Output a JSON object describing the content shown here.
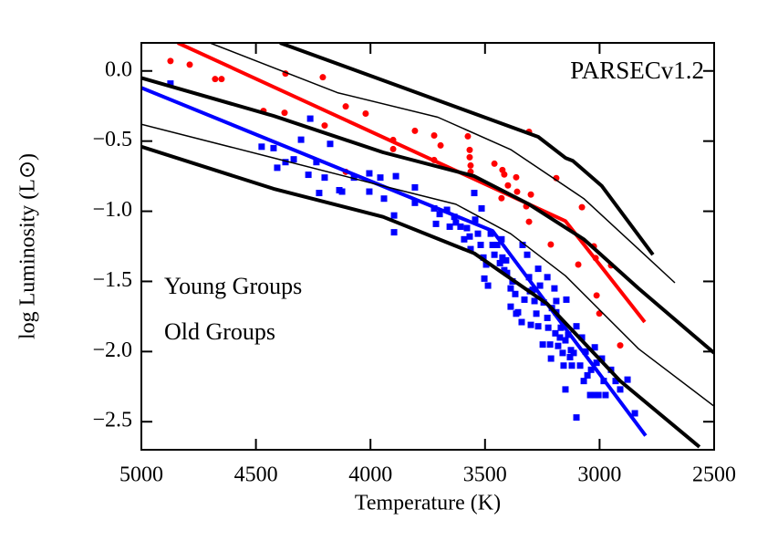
{
  "chart_data": {
    "type": "scatter",
    "annotation": "PARSECv1.2",
    "xlabel": "Temperature (K)",
    "ylabel": "log Luminosity (L⊙)",
    "xlim": [
      5000,
      2500
    ],
    "ylim": [
      -2.7,
      0.2
    ],
    "xticks": [
      5000,
      4500,
      4000,
      3500,
      3000,
      2500
    ],
    "yticks": [
      {
        "value": 0,
        "label": "0.0"
      },
      {
        "value": -0.5,
        "label": "−0.5"
      },
      {
        "value": -1,
        "label": "−1.0"
      },
      {
        "value": -1.5,
        "label": "−1.5"
      },
      {
        "value": -2,
        "label": "−2.0"
      },
      {
        "value": -2.5,
        "label": "−2.5"
      }
    ],
    "series": [
      {
        "name": "Young Groups",
        "color": "#ff0000",
        "kind": "scatter",
        "marker": "circle",
        "x": [
          4873,
          4789,
          4678,
          4650,
          4371,
          4208,
          4467,
          4375,
          4200,
          4108,
          4108,
          4021,
          3901,
          3901,
          3806,
          3722,
          3694,
          3722,
          3575,
          3567,
          3567,
          3563,
          3563,
          3459,
          3424,
          3416,
          3428,
          3400,
          3364,
          3360,
          3308,
          3300,
          3320,
          3308,
          3213,
          3189,
          3077,
          3093,
          3025,
          3017,
          3013,
          3001,
          2950,
          2910
        ],
        "values": [
          0.071,
          0.045,
          -0.058,
          -0.058,
          -0.019,
          -0.045,
          -0.285,
          -0.298,
          -0.389,
          -0.253,
          -0.719,
          -0.304,
          -0.492,
          -0.557,
          -0.427,
          -0.46,
          -0.531,
          -0.635,
          -0.466,
          -0.563,
          -0.615,
          -0.674,
          -0.719,
          -0.661,
          -0.706,
          -0.738,
          -0.907,
          -0.816,
          -0.758,
          -0.861,
          -0.434,
          -0.881,
          -0.965,
          -1.075,
          -1.237,
          -0.764,
          -0.971,
          -1.38,
          -1.25,
          -1.334,
          -1.6,
          -1.729,
          -1.386,
          -1.956
        ]
      },
      {
        "name": "Old Groups",
        "color": "#0000ff",
        "kind": "scatter",
        "marker": "square",
        "x": [
          4873,
          4475,
          4423,
          4407,
          4371,
          4335,
          4303,
          4263,
          4271,
          4236,
          4224,
          4200,
          4176,
          4136,
          4124,
          4072,
          4005,
          4005,
          3957,
          3941,
          3897,
          3897,
          3889,
          3806,
          3806,
          3722,
          3714,
          3698,
          3666,
          3654,
          3634,
          3627,
          3607,
          3591,
          3579,
          3567,
          3563,
          3547,
          3543,
          3531,
          3515,
          3519,
          3507,
          3495,
          3503,
          3487,
          3475,
          3467,
          3459,
          3447,
          3435,
          3428,
          3424,
          3416,
          3408,
          3404,
          3388,
          3380,
          3368,
          3388,
          3356,
          3364,
          3340,
          3328,
          3336,
          3316,
          3308,
          3304,
          3292,
          3284,
          3276,
          3268,
          3260,
          3248,
          3244,
          3228,
          3224,
          3216,
          3208,
          3212,
          3197,
          3193,
          3189,
          3181,
          3173,
          3169,
          3161,
          3157,
          3149,
          3145,
          3137,
          3129,
          3125,
          3121,
          3113,
          3101,
          3101,
          3085,
          3077,
          3069,
          3061,
          3053,
          3041,
          3037,
          3021,
          3021,
          3013,
          3005,
          2990,
          2982,
          2974,
          2950,
          2930,
          2910,
          2878,
          2846,
          3149,
          3189,
          3228,
          3268,
          3300
        ],
        "values": [
          -0.09,
          -0.54,
          -0.55,
          -0.69,
          -0.65,
          -0.63,
          -0.49,
          -0.34,
          -0.74,
          -0.65,
          -0.87,
          -0.76,
          -0.52,
          -0.85,
          -0.86,
          -0.76,
          -0.73,
          -0.86,
          -0.76,
          -0.91,
          -1.03,
          -1.15,
          -0.75,
          -0.83,
          -0.94,
          -0.98,
          -1.09,
          -1.02,
          -0.99,
          -1.11,
          -1.04,
          -1.08,
          -1.11,
          -1.2,
          -1.12,
          -1.18,
          -1.27,
          -0.87,
          -1.06,
          -1.16,
          -0.98,
          -1.24,
          -1.33,
          -1.38,
          -1.48,
          -1.53,
          -1.16,
          -1.24,
          -1.31,
          -1.24,
          -1.37,
          -1.2,
          -1.33,
          -1.42,
          -1.35,
          -1.44,
          -1.55,
          -1.5,
          -1.59,
          -1.68,
          -1.72,
          -1.73,
          -1.79,
          -1.63,
          -1.24,
          -1.31,
          -1.47,
          -1.57,
          -1.56,
          -1.64,
          -1.73,
          -1.82,
          -1.53,
          -1.95,
          -1.65,
          -1.76,
          -1.83,
          -1.95,
          -1.69,
          -2.05,
          -1.55,
          -1.87,
          -1.72,
          -1.96,
          -1.9,
          -1.83,
          -2.01,
          -2.1,
          -1.92,
          -1.63,
          -1.88,
          -2.04,
          -1.99,
          -2.1,
          -2.01,
          -1.82,
          -2.47,
          -2.1,
          -1.9,
          -2.21,
          -2.0,
          -2.17,
          -2.31,
          -2.13,
          -1.97,
          -2.31,
          -2.08,
          -2.31,
          -2.05,
          -2.21,
          -2.31,
          -2.13,
          -2.21,
          -2.27,
          -2.2,
          -2.44,
          -2.27,
          -1.64,
          -1.47,
          -1.41,
          -1.81
        ]
      },
      {
        "color": "#ff0000",
        "kind": "line",
        "width": 4,
        "x": [
          4841,
          3149,
          2803
        ],
        "values": [
          0.2,
          -1.07,
          -1.79
        ]
      },
      {
        "color": "#0000ff",
        "kind": "line",
        "width": 4,
        "x": [
          5000,
          3467,
          2799
        ],
        "values": [
          -0.12,
          -1.14,
          -2.6
        ]
      },
      {
        "color": "#000000",
        "kind": "line",
        "width": 4,
        "x": [
          4395,
          3268,
          3149,
          3117,
          2990,
          2767
        ],
        "values": [
          0.2,
          -0.47,
          -0.62,
          -0.64,
          -0.82,
          -1.31
        ]
      },
      {
        "color": "#000000",
        "kind": "line",
        "width": 1.5,
        "x": [
          4701,
          4144,
          3706,
          3388,
          3069,
          2830,
          2671
        ],
        "values": [
          0.2,
          -0.155,
          -0.33,
          -0.56,
          -0.91,
          -1.27,
          -1.51
        ]
      },
      {
        "color": "#000000",
        "kind": "line",
        "width": 4,
        "x": [
          5000,
          4423,
          3945,
          3547,
          3308,
          3069,
          2830,
          2500
        ],
        "values": [
          -0.05,
          -0.32,
          -0.58,
          -0.75,
          -0.95,
          -1.2,
          -1.55,
          -2.01
        ]
      },
      {
        "color": "#000000",
        "kind": "line",
        "width": 1.5,
        "x": [
          5000,
          4423,
          3945,
          3627,
          3388,
          3149,
          2830,
          2500
        ],
        "values": [
          -0.38,
          -0.62,
          -0.82,
          -0.95,
          -1.16,
          -1.46,
          -1.98,
          -2.39
        ]
      },
      {
        "color": "#000000",
        "kind": "line",
        "width": 4,
        "x": [
          5000,
          4423,
          3945,
          3547,
          3228,
          2910,
          2564
        ],
        "values": [
          -0.54,
          -0.84,
          -1.04,
          -1.3,
          -1.66,
          -2.21,
          -2.68
        ]
      }
    ]
  }
}
